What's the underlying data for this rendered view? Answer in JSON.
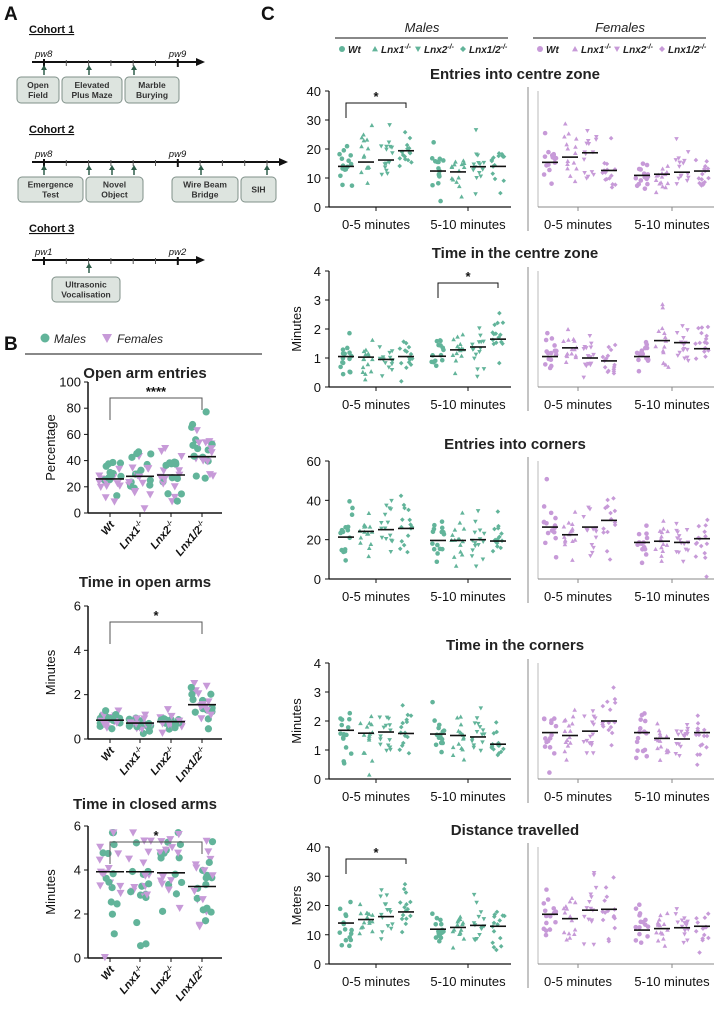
{
  "colors": {
    "male": "#62b49a",
    "female": "#c79ad8",
    "box_fill": "#dde4df",
    "box_stroke": "#80918a",
    "arrow": "#2f5d4a"
  },
  "panel_a": {
    "label": "A",
    "cohorts": [
      {
        "title": "Cohort 1",
        "start_label": "pw8",
        "end_label": "pw9",
        "boxes": [
          {
            "lines": [
              "Open",
              "Field"
            ]
          },
          {
            "lines": [
              "Elevated",
              "Plus Maze"
            ]
          },
          {
            "lines": [
              "Marble",
              "Burying"
            ]
          }
        ]
      },
      {
        "title": "Cohort 2",
        "start_label": "pw8",
        "end_label": "pw9",
        "boxes": [
          {
            "lines": [
              "Emergence",
              "Test"
            ]
          },
          {
            "lines": [
              "Novel",
              "Object"
            ]
          },
          {
            "lines": [
              "Wire Beam",
              "Bridge"
            ]
          },
          {
            "lines": [
              "SIH"
            ]
          }
        ]
      },
      {
        "title": "Cohort 3",
        "start_label": "pw1",
        "end_label": "pw2",
        "boxes": [
          {
            "lines": [
              "Ultrasonic",
              "Vocalisation"
            ]
          }
        ]
      }
    ]
  },
  "panel_b": {
    "label": "B",
    "legend": {
      "male": "Males",
      "female": "Females"
    },
    "categories": [
      {
        "name": "Wt",
        "sup": ""
      },
      {
        "name": "Lnx1",
        "sup": "-/-"
      },
      {
        "name": "Lnx2",
        "sup": "-/-"
      },
      {
        "name": "Lnx1/2",
        "sup": "-/-"
      }
    ]
  },
  "panel_c": {
    "label": "C",
    "sex_headers": {
      "male": "Males",
      "female": "Females"
    },
    "legend": [
      {
        "name": "Wt",
        "sup": ""
      },
      {
        "name": "Lnx1",
        "sup": "-/-"
      },
      {
        "name": "Lnx2",
        "sup": "-/-"
      },
      {
        "name": "Lnx1/2",
        "sup": "-/-"
      }
    ],
    "period_labels": [
      "0-5 minutes",
      "5-10 minutes"
    ]
  },
  "chart_data": [
    {
      "id": "b1",
      "type": "scatter",
      "title": "Open arm entries",
      "ylabel": "Percentage",
      "ylim": [
        0,
        100
      ],
      "yticks": [
        "0",
        "20",
        "40",
        "60",
        "80",
        "100"
      ],
      "group_means": [
        26,
        28,
        29,
        43
      ],
      "significance": {
        "label": "****",
        "from": 0,
        "to": 3
      }
    },
    {
      "id": "b2",
      "type": "scatter",
      "title": "Time in open arms",
      "ylabel": "Minutes",
      "ylim": [
        0,
        6
      ],
      "yticks": [
        "0",
        "2",
        "4",
        "6"
      ],
      "group_means": [
        0.85,
        0.72,
        0.78,
        1.55
      ],
      "significance": {
        "label": "*",
        "from": 0,
        "to": 3
      }
    },
    {
      "id": "b3",
      "type": "scatter",
      "title": "Time in closed arms",
      "ylabel": "Minutes",
      "ylim": [
        0,
        6
      ],
      "yticks": [
        "0",
        "2",
        "4",
        "6"
      ],
      "group_means": [
        3.92,
        3.92,
        3.87,
        3.25
      ],
      "significance": {
        "label": "*",
        "from": 0,
        "to": 3
      }
    },
    {
      "id": "c1",
      "type": "scatter",
      "title": "Entries into centre zone",
      "ylabel": "",
      "ylim": [
        0,
        40
      ],
      "yticks": [
        "0",
        "10",
        "20",
        "30",
        "40"
      ],
      "male": [
        [
          14,
          15.5,
          16.2,
          19.4
        ],
        [
          12.4,
          12.1,
          13.9,
          14
        ]
      ],
      "female": [
        [
          15.4,
          17.2,
          18.7,
          12.6
        ],
        [
          10.9,
          11.3,
          12,
          12.4
        ]
      ],
      "significance": {
        "label": "*",
        "sex": "male",
        "period": 0,
        "from": 0,
        "to": 3
      }
    },
    {
      "id": "c2",
      "type": "scatter",
      "title": "Time in the centre zone",
      "ylabel": "Minutes",
      "ylim": [
        0,
        4
      ],
      "yticks": [
        "0",
        "1",
        "2",
        "3",
        "4"
      ],
      "male": [
        [
          1.05,
          1.03,
          0.95,
          1.05
        ],
        [
          1.06,
          1.28,
          1.38,
          1.65
        ]
      ],
      "female": [
        [
          1.05,
          1.35,
          1.0,
          0.9
        ],
        [
          1.05,
          1.6,
          1.53,
          1.32
        ]
      ],
      "significance": {
        "label": "*",
        "sex": "male",
        "period": 1,
        "from": 0,
        "to": 3
      }
    },
    {
      "id": "c3",
      "type": "scatter",
      "title": "Entries into corners",
      "ylabel": "",
      "ylim": [
        0,
        60
      ],
      "yticks": [
        "0",
        "20",
        "40",
        "60"
      ],
      "male": [
        [
          21.3,
          24.2,
          25.1,
          25.7
        ],
        [
          19.6,
          19.6,
          20,
          19.3
        ]
      ],
      "female": [
        [
          26.4,
          22.5,
          26.4,
          29.8
        ],
        [
          18.6,
          19.2,
          18.6,
          20.5
        ]
      ],
      "significance": null
    },
    {
      "id": "c4",
      "type": "scatter",
      "title": "Time in the corners",
      "ylabel": "Minutes",
      "ylim": [
        0,
        4
      ],
      "yticks": [
        "0",
        "1",
        "2",
        "3",
        "4"
      ],
      "male": [
        [
          1.68,
          1.58,
          1.62,
          1.57
        ],
        [
          1.55,
          1.5,
          1.45,
          1.2
        ]
      ],
      "female": [
        [
          1.6,
          1.5,
          1.65,
          2.0
        ],
        [
          1.6,
          1.4,
          1.38,
          1.6
        ]
      ],
      "significance": null
    },
    {
      "id": "c5",
      "type": "scatter",
      "title": "Distance travelled",
      "ylabel": "Meters",
      "ylim": [
        0,
        40
      ],
      "yticks": [
        "0",
        "10",
        "20",
        "30",
        "40"
      ],
      "male": [
        [
          14,
          15.2,
          16.2,
          17.8
        ],
        [
          11.9,
          12.5,
          13.2,
          12.9
        ]
      ],
      "female": [
        [
          17,
          15.5,
          18.4,
          18.7
        ],
        [
          11.6,
          12.1,
          12.4,
          12.9
        ]
      ],
      "significance": {
        "label": "*",
        "sex": "male",
        "period": 0,
        "from": 0,
        "to": 3
      }
    }
  ]
}
